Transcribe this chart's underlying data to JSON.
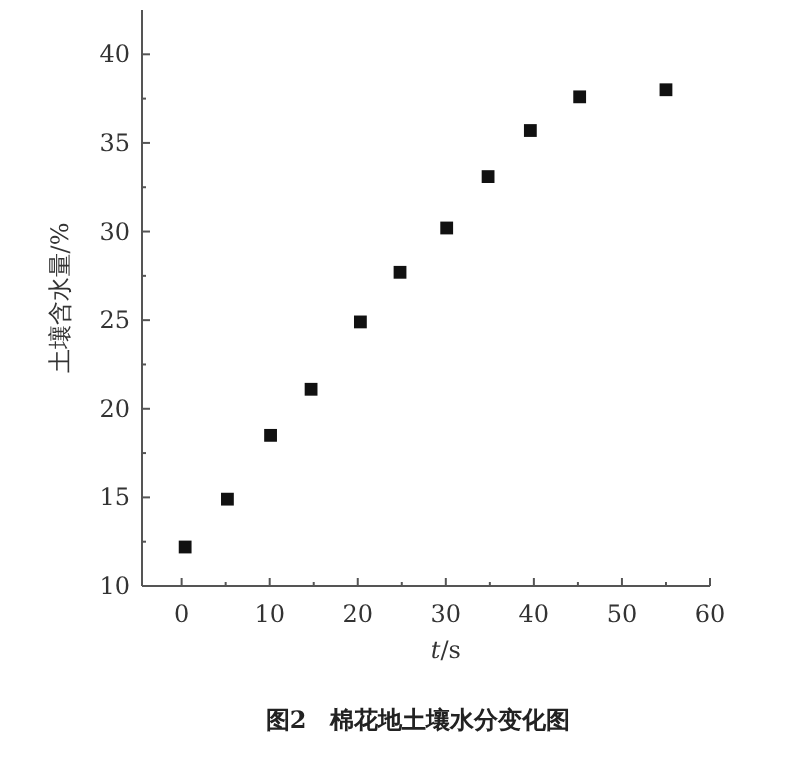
{
  "chart_data": {
    "type": "scatter",
    "title": "图2　棉花地土壤水分变化图",
    "xlabel": "*t*/s",
    "ylabel": "土壤含水量/%",
    "x": [
      0.4,
      5.2,
      10.1,
      14.7,
      20.3,
      24.8,
      30.1,
      34.8,
      39.6,
      45.2,
      55.0
    ],
    "values": [
      12.2,
      14.9,
      18.5,
      21.1,
      24.9,
      27.7,
      30.2,
      33.1,
      35.7,
      37.6,
      38.0
    ],
    "color": "#111111",
    "marker": "square",
    "xlim": [
      -4.5,
      60
    ],
    "ylim": [
      10,
      42.5
    ],
    "xticks": [
      0,
      10,
      20,
      30,
      40,
      50,
      60
    ],
    "yticks": [
      10,
      15,
      20,
      25,
      30,
      35,
      40
    ],
    "grid": false
  }
}
